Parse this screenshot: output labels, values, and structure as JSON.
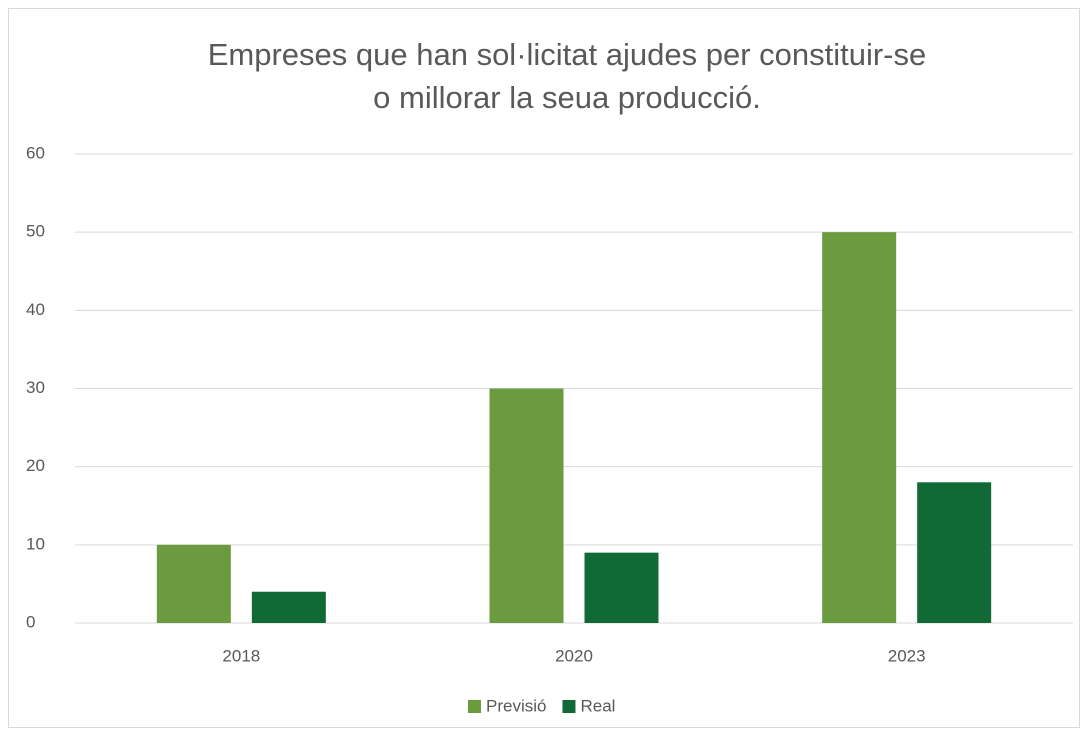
{
  "chart_data": {
    "type": "bar",
    "title": [
      "Empreses que han sol·licitat ajudes per constituir-se",
      "o millorar la seua producció."
    ],
    "categories": [
      "2018",
      "2020",
      "2023"
    ],
    "series": [
      {
        "name": "Previsió",
        "color": "#6a9c3f",
        "values": [
          10,
          30,
          50
        ]
      },
      {
        "name": "Real",
        "color": "#116a35",
        "values": [
          4,
          9,
          18
        ]
      }
    ],
    "ylim": [
      0,
      60
    ],
    "yticks": [
      0,
      10,
      20,
      30,
      40,
      50,
      60
    ],
    "grid": true,
    "legend": "bottom"
  }
}
